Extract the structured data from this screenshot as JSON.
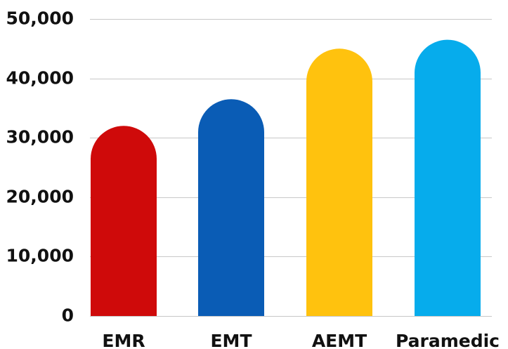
{
  "chart_data": {
    "type": "bar",
    "categories": [
      "EMR",
      "EMT",
      "AEMT",
      "Paramedic"
    ],
    "values": [
      32000,
      36500,
      45000,
      46500
    ],
    "colors": [
      "#CF0A0A",
      "#0A5CB5",
      "#FFC20E",
      "#06ACEC"
    ],
    "title": "",
    "xlabel": "",
    "ylabel": "",
    "ylim": [
      0,
      50000
    ],
    "yticks": [
      0,
      10000,
      20000,
      30000,
      40000,
      50000
    ],
    "ytick_labels": [
      "0",
      "10,000",
      "20,000",
      "30,000",
      "40,000",
      "50,000"
    ],
    "grid": true,
    "legend": "none",
    "bar_style": "rounded-top"
  }
}
